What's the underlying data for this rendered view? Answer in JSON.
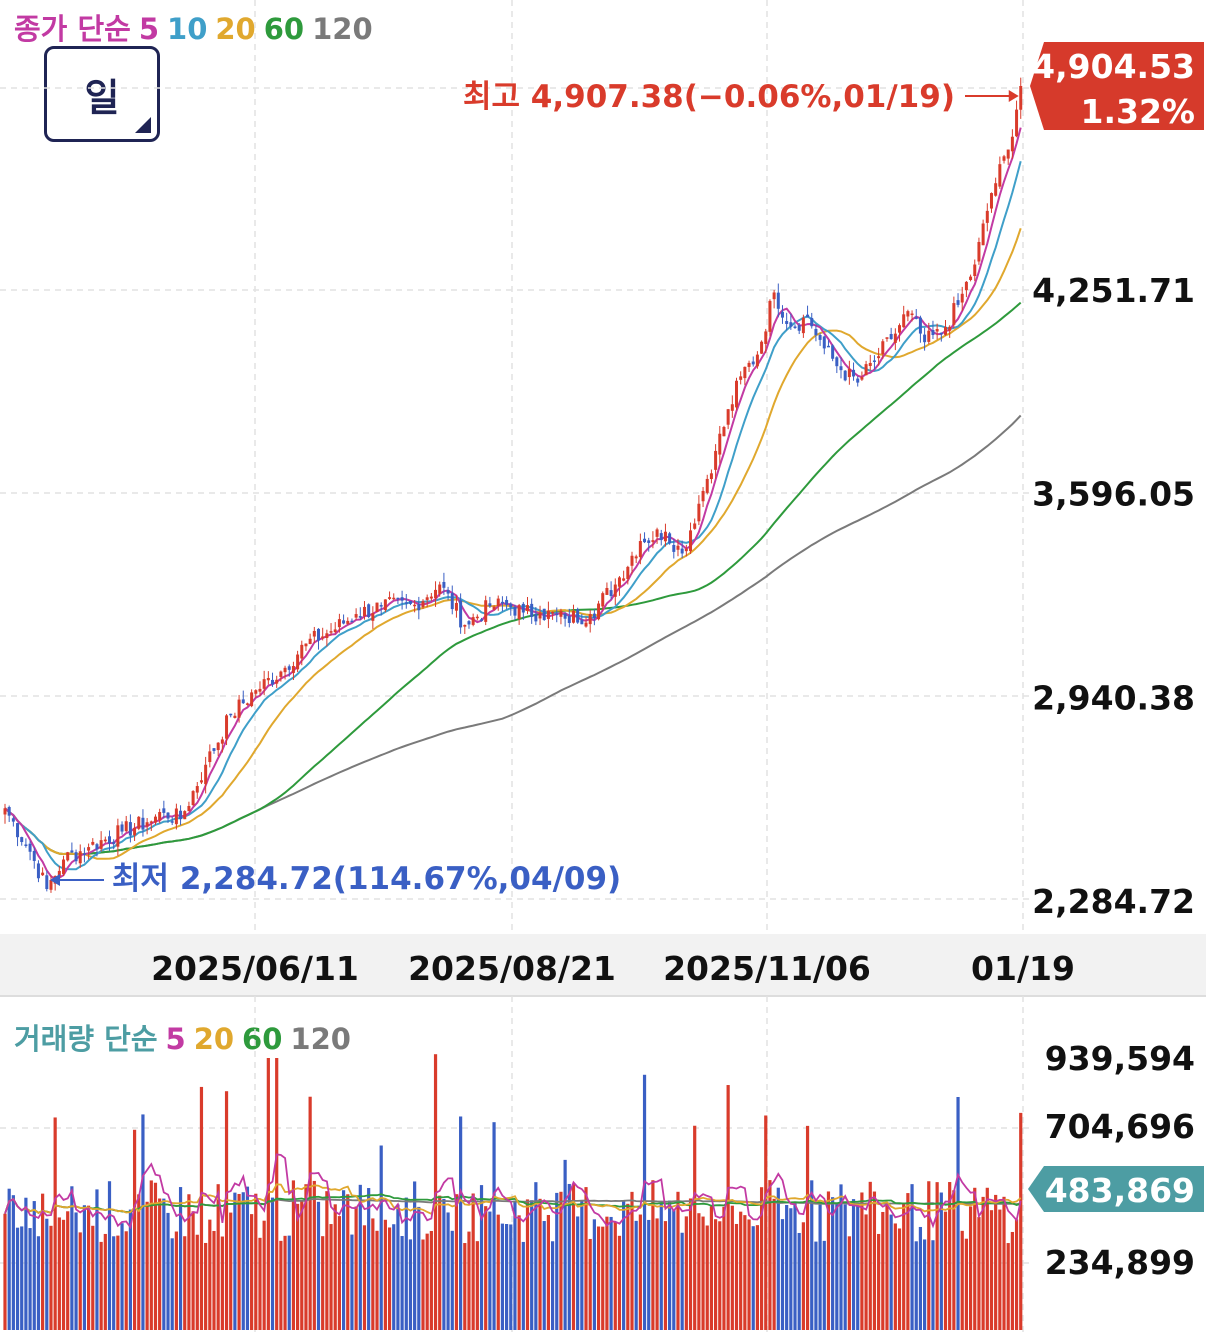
{
  "price_legend": {
    "label": "종가 단순",
    "ma": [
      "5",
      "10",
      "20",
      "60",
      "120"
    ]
  },
  "volume_legend": {
    "label": "거래량 단순",
    "ma": [
      "5",
      "20",
      "60",
      "120"
    ]
  },
  "period_button": {
    "label": "일"
  },
  "colors": {
    "up": "#d93b2b",
    "down": "#3a5fc4",
    "ma5": "#c23aa3",
    "ma10": "#3f9fc9",
    "ma20": "#e0a82e",
    "ma60": "#2e9a3c",
    "ma120": "#7a7a7a",
    "current_badge": "#d63a2b",
    "volume_badge": "#4d9da3"
  },
  "chart_data": [
    {
      "type": "candlestick",
      "title": "",
      "y_ticks": [
        "4,251.71",
        "3,596.05",
        "2,940.38",
        "2,284.72"
      ],
      "x_ticks": [
        "2025/06/11",
        "2025/08/21",
        "2025/11/06",
        "01/19"
      ],
      "ylim": [
        2284.72,
        4904.53
      ],
      "current": {
        "price": "4,904.53",
        "change": "1.32%"
      },
      "high_annotation": "최고 4,907.38(−0.06%,01/19)",
      "low_annotation": "최저 2,284.72(114.67%,04/09)",
      "close_anchors": [
        [
          0,
          2580
        ],
        [
          6,
          2440
        ],
        [
          10,
          2320
        ],
        [
          14,
          2415
        ],
        [
          20,
          2455
        ],
        [
          28,
          2505
        ],
        [
          34,
          2535
        ],
        [
          38,
          2565
        ],
        [
          42,
          2545
        ],
        [
          48,
          2720
        ],
        [
          54,
          2880
        ],
        [
          60,
          2960
        ],
        [
          66,
          3020
        ],
        [
          72,
          3110
        ],
        [
          78,
          3150
        ],
        [
          84,
          3205
        ],
        [
          90,
          3230
        ],
        [
          98,
          3235
        ],
        [
          104,
          3300
        ],
        [
          110,
          3170
        ],
        [
          116,
          3230
        ],
        [
          120,
          3235
        ],
        [
          124,
          3210
        ],
        [
          128,
          3210
        ],
        [
          134,
          3190
        ],
        [
          140,
          3205
        ],
        [
          146,
          3300
        ],
        [
          152,
          3440
        ],
        [
          158,
          3470
        ],
        [
          162,
          3400
        ],
        [
          166,
          3560
        ],
        [
          170,
          3730
        ],
        [
          176,
          3970
        ],
        [
          180,
          4040
        ],
        [
          184,
          4240
        ],
        [
          188,
          4130
        ],
        [
          192,
          4160
        ],
        [
          196,
          4060
        ],
        [
          200,
          3990
        ],
        [
          204,
          3950
        ],
        [
          208,
          4020
        ],
        [
          212,
          4090
        ],
        [
          216,
          4180
        ],
        [
          220,
          4080
        ],
        [
          224,
          4110
        ],
        [
          228,
          4200
        ],
        [
          232,
          4330
        ],
        [
          236,
          4560
        ],
        [
          240,
          4700
        ],
        [
          243,
          4904.53
        ]
      ]
    },
    {
      "type": "bar",
      "title": "",
      "y_ticks": [
        "939,594",
        "704,696",
        "234,899"
      ],
      "current": "483,869",
      "ylim": [
        0,
        939594
      ]
    }
  ]
}
